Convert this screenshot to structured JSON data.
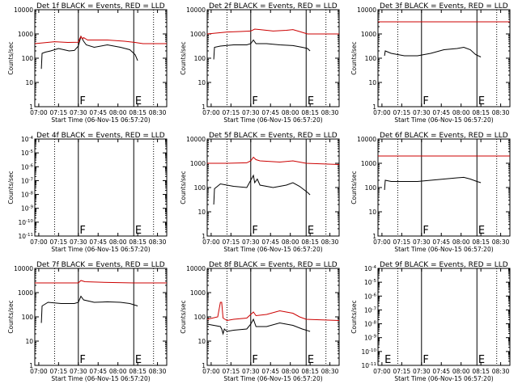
{
  "colors": {
    "events": "#000000",
    "lld": "#cc0000",
    "axis": "#000000"
  },
  "x_axis": {
    "label": "Start Time (06-Nov-15 06:57:20)",
    "tick_labels": [
      "07:00",
      "07:15",
      "07:30",
      "07:45",
      "08:00",
      "08:15",
      "08:30"
    ],
    "range_minutes": [
      0,
      100
    ]
  },
  "y_axis_label": "Counts/sec",
  "markers": {
    "dotted_x_min": [
      15,
      90
    ],
    "solid_x_min": [
      33,
      75
    ]
  },
  "chart_data": [
    {
      "type": "line",
      "title": "Det 1f BLACK = Events, RED = LLD",
      "scale": "log",
      "yticks": [
        "1",
        "10",
        "100",
        "1000",
        "10000"
      ],
      "ylim_log10": [
        0,
        4
      ],
      "letters": [
        {
          "text": "F",
          "x": 34
        },
        {
          "text": "E",
          "x": 76
        }
      ],
      "series": [
        {
          "name": "Events",
          "color": "black",
          "points": [
            [
              5,
              1.56
            ],
            [
              5.5,
              2.2
            ],
            [
              8,
              2.25
            ],
            [
              12,
              2.3
            ],
            [
              18,
              2.4
            ],
            [
              22,
              2.35
            ],
            [
              26,
              2.3
            ],
            [
              30,
              2.32
            ],
            [
              33,
              2.5
            ],
            [
              35,
              2.9
            ],
            [
              37,
              2.7
            ],
            [
              39,
              2.55
            ],
            [
              45,
              2.45
            ],
            [
              55,
              2.55
            ],
            [
              65,
              2.45
            ],
            [
              72,
              2.35
            ],
            [
              76,
              2.15
            ],
            [
              78,
              1.9
            ]
          ]
        },
        {
          "name": "LLD",
          "color": "red",
          "points": [
            [
              0,
              2.6
            ],
            [
              15,
              2.68
            ],
            [
              25,
              2.65
            ],
            [
              33,
              2.66
            ],
            [
              34,
              2.8
            ],
            [
              35,
              2.9
            ],
            [
              36,
              2.8
            ],
            [
              37,
              2.85
            ],
            [
              40,
              2.75
            ],
            [
              55,
              2.75
            ],
            [
              68,
              2.7
            ],
            [
              76,
              2.65
            ],
            [
              82,
              2.6
            ],
            [
              100,
              2.6
            ]
          ]
        }
      ]
    },
    {
      "type": "line",
      "title": "Det 2f BLACK = Events, RED = LLD",
      "scale": "log",
      "yticks": [
        "1",
        "10",
        "100",
        "1000",
        "10000"
      ],
      "ylim_log10": [
        0,
        4
      ],
      "letters": [
        {
          "text": "F",
          "x": 34
        },
        {
          "text": "E",
          "x": 76
        }
      ],
      "series": [
        {
          "name": "Events",
          "color": "black",
          "points": [
            [
              5,
              1.95
            ],
            [
              5.5,
              2.45
            ],
            [
              10,
              2.5
            ],
            [
              20,
              2.55
            ],
            [
              30,
              2.55
            ],
            [
              33,
              2.6
            ],
            [
              35,
              2.75
            ],
            [
              37,
              2.6
            ],
            [
              45,
              2.6
            ],
            [
              55,
              2.55
            ],
            [
              65,
              2.52
            ],
            [
              72,
              2.45
            ],
            [
              76,
              2.4
            ],
            [
              78,
              2.3
            ]
          ]
        },
        {
          "name": "LLD",
          "color": "red",
          "points": [
            [
              0,
              3.0
            ],
            [
              15,
              3.08
            ],
            [
              25,
              3.1
            ],
            [
              33,
              3.12
            ],
            [
              36,
              3.2
            ],
            [
              40,
              3.18
            ],
            [
              50,
              3.12
            ],
            [
              60,
              3.15
            ],
            [
              65,
              3.18
            ],
            [
              70,
              3.1
            ],
            [
              76,
              3.0
            ],
            [
              100,
              3.0
            ]
          ]
        }
      ]
    },
    {
      "type": "line",
      "title": "Det 3f BLACK = Events, RED = LLD",
      "scale": "log",
      "yticks": [
        "1",
        "10",
        "100",
        "1000",
        "10000"
      ],
      "ylim_log10": [
        0,
        4
      ],
      "letters": [
        {
          "text": "F",
          "x": 34
        },
        {
          "text": "E",
          "x": 76
        }
      ],
      "series": [
        {
          "name": "Events",
          "color": "black",
          "points": [
            [
              5,
              2.1
            ],
            [
              5.5,
              2.3
            ],
            [
              10,
              2.2
            ],
            [
              20,
              2.1
            ],
            [
              30,
              2.1
            ],
            [
              40,
              2.2
            ],
            [
              50,
              2.35
            ],
            [
              60,
              2.4
            ],
            [
              65,
              2.45
            ],
            [
              70,
              2.35
            ],
            [
              74,
              2.15
            ],
            [
              78,
              2.05
            ]
          ]
        },
        {
          "name": "LLD",
          "color": "red",
          "points": [
            [
              0,
              3.5
            ],
            [
              50,
              3.5
            ],
            [
              100,
              3.5
            ]
          ]
        }
      ]
    },
    {
      "type": "line",
      "title": "Det 4f BLACK = Events, RED = LLD",
      "scale": "log",
      "yticks": [
        "10^-11",
        "10^-10",
        "10^-9",
        "10^-8",
        "10^-7",
        "10^-6",
        "10^-5",
        "10^-4"
      ],
      "ylim_log10": [
        -11,
        -4
      ],
      "letters": [
        {
          "text": "F",
          "x": 34
        },
        {
          "text": "E",
          "x": 76
        }
      ],
      "series": []
    },
    {
      "type": "line",
      "title": "Det 5f BLACK = Events, RED = LLD",
      "scale": "log",
      "yticks": [
        "1",
        "10",
        "100",
        "1000",
        "10000"
      ],
      "ylim_log10": [
        0,
        4
      ],
      "letters": [
        {
          "text": "F",
          "x": 34
        },
        {
          "text": "E",
          "x": 76
        }
      ],
      "series": [
        {
          "name": "Events",
          "color": "black",
          "points": [
            [
              5,
              1.3
            ],
            [
              5.5,
              1.95
            ],
            [
              10,
              2.15
            ],
            [
              20,
              2.05
            ],
            [
              30,
              2.0
            ],
            [
              33,
              2.3
            ],
            [
              35,
              2.5
            ],
            [
              36,
              2.2
            ],
            [
              38,
              2.35
            ],
            [
              40,
              2.1
            ],
            [
              50,
              2.0
            ],
            [
              60,
              2.1
            ],
            [
              65,
              2.2
            ],
            [
              70,
              2.05
            ],
            [
              76,
              1.8
            ],
            [
              78,
              1.7
            ]
          ]
        },
        {
          "name": "LLD",
          "color": "red",
          "points": [
            [
              0,
              3.0
            ],
            [
              15,
              3.0
            ],
            [
              30,
              3.02
            ],
            [
              33,
              3.1
            ],
            [
              35,
              3.25
            ],
            [
              37,
              3.15
            ],
            [
              40,
              3.1
            ],
            [
              55,
              3.05
            ],
            [
              65,
              3.1
            ],
            [
              75,
              3.0
            ],
            [
              100,
              2.95
            ]
          ]
        }
      ]
    },
    {
      "type": "line",
      "title": "Det 6f BLACK = Events, RED = LLD",
      "scale": "log",
      "yticks": [
        "1",
        "10",
        "100",
        "1000",
        "10000"
      ],
      "ylim_log10": [
        0,
        4
      ],
      "letters": [
        {
          "text": "F",
          "x": 34
        },
        {
          "text": "E",
          "x": 76
        }
      ],
      "series": [
        {
          "name": "Events",
          "color": "black",
          "points": [
            [
              5,
              1.9
            ],
            [
              5.5,
              2.3
            ],
            [
              10,
              2.25
            ],
            [
              20,
              2.25
            ],
            [
              30,
              2.25
            ],
            [
              40,
              2.3
            ],
            [
              50,
              2.35
            ],
            [
              60,
              2.4
            ],
            [
              65,
              2.42
            ],
            [
              70,
              2.35
            ],
            [
              75,
              2.25
            ],
            [
              78,
              2.2
            ]
          ]
        },
        {
          "name": "LLD",
          "color": "red",
          "points": [
            [
              0,
              3.3
            ],
            [
              50,
              3.3
            ],
            [
              100,
              3.3
            ]
          ]
        }
      ]
    },
    {
      "type": "line",
      "title": "Det 7f BLACK = Events, RED = LLD",
      "scale": "log",
      "yticks": [
        "1",
        "10",
        "100",
        "1000",
        "10000"
      ],
      "ylim_log10": [
        0,
        4
      ],
      "letters": [
        {
          "text": "F",
          "x": 34
        },
        {
          "text": "E",
          "x": 76
        }
      ],
      "series": [
        {
          "name": "Events",
          "color": "black",
          "points": [
            [
              5,
              1.75
            ],
            [
              5.5,
              2.45
            ],
            [
              10,
              2.6
            ],
            [
              20,
              2.55
            ],
            [
              30,
              2.55
            ],
            [
              33,
              2.6
            ],
            [
              35,
              2.85
            ],
            [
              37,
              2.7
            ],
            [
              45,
              2.6
            ],
            [
              55,
              2.62
            ],
            [
              65,
              2.6
            ],
            [
              72,
              2.55
            ],
            [
              78,
              2.45
            ]
          ]
        },
        {
          "name": "LLD",
          "color": "red",
          "points": [
            [
              0,
              3.4
            ],
            [
              20,
              3.4
            ],
            [
              33,
              3.4
            ],
            [
              35,
              3.5
            ],
            [
              38,
              3.45
            ],
            [
              55,
              3.42
            ],
            [
              75,
              3.4
            ],
            [
              100,
              3.4
            ]
          ]
        }
      ]
    },
    {
      "type": "line",
      "title": "Det 8f BLACK = Events, RED = LLD",
      "scale": "log",
      "yticks": [
        "1",
        "10",
        "100",
        "1000",
        "10000"
      ],
      "ylim_log10": [
        0,
        4
      ],
      "letters": [
        {
          "text": "F",
          "x": 34
        },
        {
          "text": "E",
          "x": 76
        }
      ],
      "series": [
        {
          "name": "Events",
          "color": "black",
          "points": [
            [
              0,
              1.7
            ],
            [
              5,
              1.65
            ],
            [
              10,
              1.6
            ],
            [
              11,
              1.5
            ],
            [
              12,
              1.3
            ],
            [
              13,
              1.5
            ],
            [
              15,
              1.4
            ],
            [
              20,
              1.45
            ],
            [
              30,
              1.5
            ],
            [
              33,
              1.7
            ],
            [
              35,
              1.9
            ],
            [
              37,
              1.6
            ],
            [
              45,
              1.6
            ],
            [
              55,
              1.75
            ],
            [
              65,
              1.65
            ],
            [
              72,
              1.5
            ],
            [
              78,
              1.4
            ]
          ]
        },
        {
          "name": "LLD",
          "color": "red",
          "points": [
            [
              0,
              1.9
            ],
            [
              8,
              2.0
            ],
            [
              10,
              2.6
            ],
            [
              11,
              2.6
            ],
            [
              12,
              1.95
            ],
            [
              15,
              1.85
            ],
            [
              20,
              1.9
            ],
            [
              30,
              1.95
            ],
            [
              33,
              2.1
            ],
            [
              35,
              2.2
            ],
            [
              37,
              2.05
            ],
            [
              45,
              2.1
            ],
            [
              55,
              2.25
            ],
            [
              65,
              2.15
            ],
            [
              70,
              2.0
            ],
            [
              75,
              1.9
            ],
            [
              100,
              1.85
            ]
          ]
        }
      ]
    },
    {
      "type": "line",
      "title": "Det 9f BLACK = Events, RED = LLD",
      "scale": "log",
      "yticks": [
        "10^-11",
        "10^-10",
        "10^-9",
        "10^-8",
        "10^-7",
        "10^-6",
        "10^-5",
        "10^-4"
      ],
      "ylim_log10": [
        -11,
        -4
      ],
      "letters": [
        {
          "text": "E",
          "x": 5
        },
        {
          "text": "F",
          "x": 34
        },
        {
          "text": "E",
          "x": 76
        }
      ],
      "series": []
    }
  ]
}
